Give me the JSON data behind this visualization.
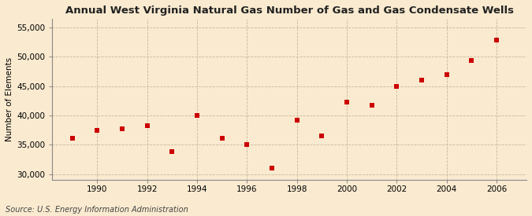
{
  "title": "Annual West Virginia Natural Gas Number of Gas and Gas Condensate Wells",
  "ylabel": "Number of Elements",
  "source": "Source: U.S. Energy Information Administration",
  "years": [
    1989,
    1990,
    1991,
    1992,
    1993,
    1994,
    1995,
    1996,
    1997,
    1998,
    1999,
    2000,
    2001,
    2002,
    2003,
    2004,
    2005,
    2006
  ],
  "values": [
    36100,
    37400,
    37700,
    38200,
    33800,
    40000,
    36100,
    35000,
    31000,
    39200,
    36500,
    42300,
    41800,
    45000,
    46100,
    47000,
    49400,
    52900
  ],
  "marker_color": "#cc0000",
  "marker_size": 5,
  "background_color": "#faebd0",
  "grid_color": "#c8b89a",
  "ylim": [
    29000,
    56500
  ],
  "yticks": [
    30000,
    35000,
    40000,
    45000,
    50000,
    55000
  ],
  "xlim": [
    1988.2,
    2007.2
  ],
  "xticks": [
    1990,
    1992,
    1994,
    1996,
    1998,
    2000,
    2002,
    2004,
    2006
  ]
}
